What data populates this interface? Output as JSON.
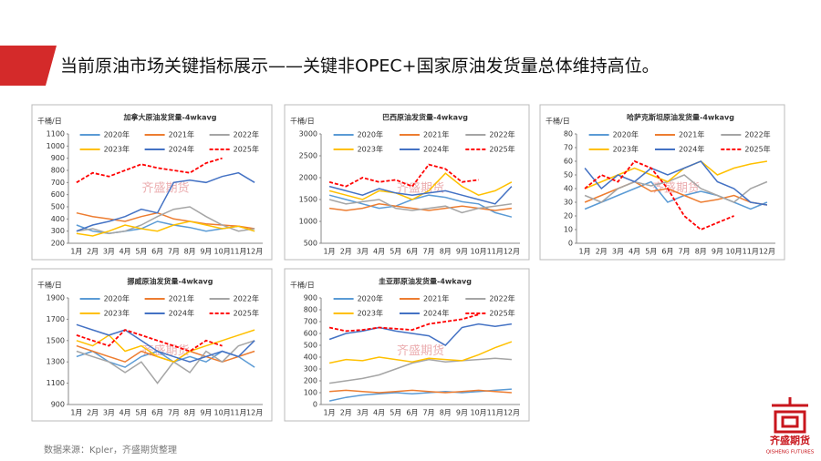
{
  "header": {
    "title": "当前原油市场关键指标展示——关键非OPEC+国家原油发货量总体维持高位。"
  },
  "source": "数据来源：Kpler，齐盛期货整理",
  "logo": {
    "name": "齐盛期货",
    "english": "QISHENG FUTURES"
  },
  "watermark": "齐盛期货",
  "chart_data": [
    {
      "type": "line",
      "title": "加拿大原油发货量-4wkavg",
      "y_label": "千桶/日",
      "categories": [
        "1月",
        "2月",
        "3月",
        "4月",
        "5月",
        "6月",
        "7月",
        "8月",
        "9月",
        "10月",
        "11月",
        "12月"
      ],
      "ylim": [
        200,
        1100
      ],
      "yticks": [
        200,
        300,
        400,
        500,
        600,
        700,
        800,
        900,
        1000,
        1100
      ],
      "series": [
        {
          "name": "2020年",
          "color": "#5b9bd5",
          "values": [
            350,
            300,
            280,
            300,
            320,
            380,
            350,
            330,
            300,
            320,
            340,
            300
          ]
        },
        {
          "name": "2021年",
          "color": "#ed7d31",
          "values": [
            450,
            420,
            400,
            380,
            420,
            450,
            400,
            380,
            360,
            350,
            340,
            320
          ]
        },
        {
          "name": "2022年",
          "color": "#a5a5a5",
          "values": [
            300,
            320,
            280,
            300,
            350,
            420,
            480,
            500,
            420,
            350,
            300,
            320
          ]
        },
        {
          "name": "2023年",
          "color": "#ffc000",
          "values": [
            280,
            260,
            300,
            350,
            320,
            300,
            350,
            380,
            350,
            320,
            340,
            300
          ]
        },
        {
          "name": "2024年",
          "color": "#4472c4",
          "values": [
            300,
            350,
            380,
            420,
            480,
            450,
            700,
            720,
            700,
            750,
            780,
            700
          ]
        },
        {
          "name": "2025年",
          "color": "#ff0000",
          "dash": true,
          "values": [
            700,
            780,
            750,
            800,
            850,
            820,
            800,
            780,
            860,
            900,
            null,
            null
          ]
        }
      ]
    },
    {
      "type": "line",
      "title": "巴西原油发货量-4wkavg",
      "y_label": "千桶/日",
      "categories": [
        "1月",
        "2月",
        "3月",
        "4月",
        "5月",
        "6月",
        "7月",
        "8月",
        "9月",
        "10月",
        "11月",
        "12月"
      ],
      "ylim": [
        500,
        3000
      ],
      "yticks": [
        500,
        1000,
        1500,
        2000,
        2500,
        3000
      ],
      "series": [
        {
          "name": "2020年",
          "color": "#5b9bd5",
          "values": [
            1600,
            1500,
            1400,
            1300,
            1350,
            1500,
            1600,
            1550,
            1450,
            1400,
            1200,
            1100
          ]
        },
        {
          "name": "2021年",
          "color": "#ed7d31",
          "values": [
            1300,
            1250,
            1300,
            1400,
            1350,
            1300,
            1250,
            1300,
            1350,
            1300,
            1250,
            1300
          ]
        },
        {
          "name": "2022年",
          "color": "#a5a5a5",
          "values": [
            1500,
            1400,
            1450,
            1500,
            1300,
            1250,
            1300,
            1350,
            1200,
            1300,
            1350,
            1400
          ]
        },
        {
          "name": "2023年",
          "color": "#ffc000",
          "values": [
            1700,
            1600,
            1500,
            1700,
            1650,
            1500,
            1700,
            2100,
            1800,
            1600,
            1700,
            1900
          ]
        },
        {
          "name": "2024年",
          "color": "#4472c4",
          "values": [
            1800,
            1700,
            1600,
            1750,
            1650,
            1600,
            1650,
            1700,
            1600,
            1500,
            1400,
            1800
          ]
        },
        {
          "name": "2025年",
          "color": "#ff0000",
          "dash": true,
          "values": [
            1900,
            1800,
            2000,
            1900,
            1950,
            1800,
            2300,
            2200,
            1900,
            1950,
            null,
            null
          ]
        }
      ]
    },
    {
      "type": "line",
      "title": "哈萨克斯坦原油发货量-4wkavg",
      "y_label": "千桶/日",
      "categories": [
        "1月",
        "2月",
        "3月",
        "4月",
        "5月",
        "6月",
        "7月",
        "8月",
        "9月",
        "10月",
        "11月",
        "12月"
      ],
      "ylim": [
        0,
        80
      ],
      "yticks": [
        0,
        10,
        20,
        30,
        40,
        50,
        60,
        70,
        80
      ],
      "series": [
        {
          "name": "2020年",
          "color": "#5b9bd5",
          "values": [
            25,
            30,
            35,
            40,
            45,
            30,
            35,
            38,
            35,
            30,
            25,
            30
          ]
        },
        {
          "name": "2021年",
          "color": "#ed7d31",
          "values": [
            30,
            35,
            40,
            45,
            38,
            40,
            35,
            30,
            32,
            35,
            30,
            28
          ]
        },
        {
          "name": "2022年",
          "color": "#a5a5a5",
          "values": [
            35,
            30,
            40,
            45,
            42,
            45,
            50,
            40,
            35,
            30,
            40,
            45
          ]
        },
        {
          "name": "2023年",
          "color": "#ffc000",
          "values": [
            40,
            45,
            50,
            55,
            50,
            45,
            55,
            60,
            50,
            55,
            58,
            60
          ]
        },
        {
          "name": "2024年",
          "color": "#4472c4",
          "values": [
            55,
            40,
            50,
            45,
            55,
            50,
            55,
            60,
            45,
            40,
            30,
            28
          ]
        },
        {
          "name": "2025年",
          "color": "#ff0000",
          "dash": true,
          "values": [
            40,
            50,
            45,
            60,
            55,
            40,
            20,
            10,
            15,
            20,
            null,
            null
          ]
        }
      ]
    },
    {
      "type": "line",
      "title": "挪威原油发货量-4wkavg",
      "y_label": "千桶/日",
      "categories": [
        "1月",
        "2月",
        "3月",
        "4月",
        "5月",
        "6月",
        "7月",
        "8月",
        "9月",
        "10月",
        "11月",
        "12月"
      ],
      "ylim": [
        900,
        1900
      ],
      "yticks": [
        900,
        1100,
        1300,
        1500,
        1700,
        1900
      ],
      "series": [
        {
          "name": "2020年",
          "color": "#5b9bd5",
          "values": [
            1350,
            1400,
            1300,
            1250,
            1350,
            1400,
            1300,
            1350,
            1300,
            1400,
            1350,
            1250
          ]
        },
        {
          "name": "2021年",
          "color": "#ed7d31",
          "values": [
            1450,
            1400,
            1350,
            1300,
            1400,
            1350,
            1300,
            1400,
            1350,
            1300,
            1350,
            1400
          ]
        },
        {
          "name": "2022年",
          "color": "#a5a5a5",
          "values": [
            1400,
            1350,
            1300,
            1200,
            1300,
            1100,
            1300,
            1200,
            1400,
            1300,
            1450,
            1500
          ]
        },
        {
          "name": "2023年",
          "color": "#ffc000",
          "values": [
            1500,
            1450,
            1550,
            1400,
            1450,
            1350,
            1300,
            1400,
            1450,
            1500,
            1550,
            1600
          ]
        },
        {
          "name": "2024年",
          "color": "#4472c4",
          "values": [
            1650,
            1600,
            1550,
            1600,
            1500,
            1400,
            1350,
            1300,
            1350,
            1400,
            1350,
            1500
          ]
        },
        {
          "name": "2025年",
          "color": "#ff0000",
          "dash": true,
          "values": [
            1550,
            1500,
            1450,
            1600,
            1550,
            1500,
            1450,
            1400,
            1500,
            1450,
            null,
            null
          ]
        }
      ]
    },
    {
      "type": "line",
      "title": "圭亚那原油发货量-4wkavg",
      "y_label": "千桶/日",
      "categories": [
        "1月",
        "2月",
        "3月",
        "4月",
        "5月",
        "6月",
        "7月",
        "8月",
        "9月",
        "10月",
        "11月",
        "12月"
      ],
      "ylim": [
        0,
        900
      ],
      "yticks": [
        0,
        100,
        200,
        300,
        400,
        500,
        600,
        700,
        800,
        900
      ],
      "series": [
        {
          "name": "2020年",
          "color": "#5b9bd5",
          "values": [
            30,
            60,
            80,
            90,
            100,
            90,
            100,
            110,
            100,
            110,
            120,
            130
          ]
        },
        {
          "name": "2021年",
          "color": "#ed7d31",
          "values": [
            110,
            120,
            110,
            100,
            110,
            120,
            110,
            100,
            110,
            120,
            110,
            100
          ]
        },
        {
          "name": "2022年",
          "color": "#a5a5a5",
          "values": [
            180,
            200,
            220,
            250,
            300,
            350,
            380,
            360,
            370,
            380,
            390,
            380
          ]
        },
        {
          "name": "2023年",
          "color": "#ffc000",
          "values": [
            350,
            380,
            370,
            400,
            380,
            360,
            390,
            380,
            370,
            420,
            480,
            530
          ]
        },
        {
          "name": "2024年",
          "color": "#4472c4",
          "values": [
            550,
            600,
            620,
            650,
            620,
            600,
            580,
            500,
            650,
            680,
            660,
            680
          ]
        },
        {
          "name": "2025年",
          "color": "#ff0000",
          "dash": true,
          "values": [
            650,
            620,
            630,
            650,
            640,
            630,
            680,
            700,
            720,
            760,
            null,
            null
          ]
        }
      ]
    }
  ]
}
